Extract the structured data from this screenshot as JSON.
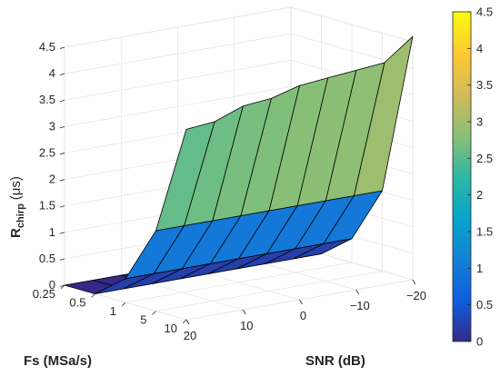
{
  "chart_data": {
    "type": "surface",
    "title": "",
    "xlabel": "Fs (MSa/s)",
    "ylabel": "SNR (dB)",
    "zlabel_main": "R",
    "zlabel_sub": "chirp",
    "zlabel_unit": "(μs)",
    "fs": [
      "0.25",
      "0.5",
      "1",
      "5",
      "10"
    ],
    "snr": [
      20,
      15,
      10,
      5,
      0,
      -5,
      -10,
      -15,
      -20
    ],
    "snr_ticks": [
      "20",
      "10",
      "0",
      "−10",
      "−20"
    ],
    "z_ticks": [
      "0",
      "0.5",
      "1",
      "1.5",
      "2",
      "2.5",
      "3",
      "3.5",
      "4",
      "4.5"
    ],
    "zlim": [
      0,
      4.5
    ],
    "colorbar_ticks": [
      "0",
      "0.5",
      "1",
      "1.5",
      "2",
      "2.5",
      "3",
      "3.5",
      "4",
      "4.5"
    ],
    "colormap": "parula",
    "grid": true,
    "z": [
      [
        3.6,
        3.65,
        3.85,
        3.9,
        4.05,
        4.1,
        4.15,
        4.2,
        4.6
      ],
      [
        1.52,
        1.52,
        1.52,
        1.52,
        1.52,
        1.52,
        1.52,
        1.52,
        1.52
      ],
      [
        0.45,
        0.45,
        0.45,
        0.45,
        0.45,
        0.45,
        0.45,
        0.45,
        0.45
      ],
      [
        0.0,
        0.0,
        0.0,
        0.0,
        0.0,
        0.0,
        0.0,
        0.0,
        0.0
      ],
      [
        0.0,
        0.0,
        0.0,
        0.0,
        0.0,
        0.0,
        0.0,
        0.0,
        0.0
      ]
    ]
  }
}
